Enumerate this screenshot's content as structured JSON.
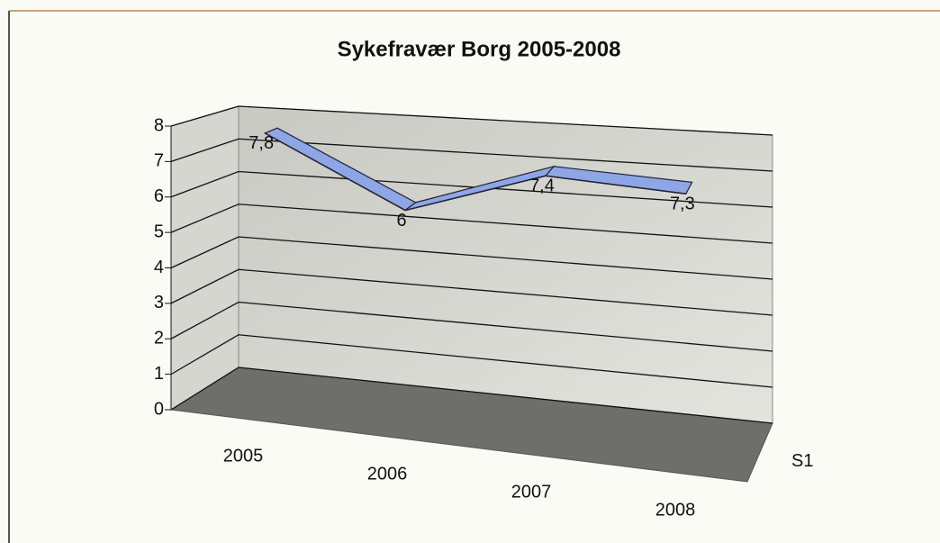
{
  "chart_data": {
    "type": "line3d",
    "title": "Sykefravær Borg 2005-2008",
    "categories": [
      "2005",
      "2006",
      "2007",
      "2008"
    ],
    "series": [
      {
        "name": "S1",
        "color": "#8fa6e6",
        "values": [
          7.8,
          6,
          7.4,
          7.3
        ],
        "value_labels": [
          "7,8",
          "6",
          "7,4",
          "7,3"
        ]
      }
    ],
    "ylim": [
      0,
      8
    ],
    "yticks": [
      0,
      1,
      2,
      3,
      4,
      5,
      6,
      7,
      8
    ],
    "grid": true
  }
}
